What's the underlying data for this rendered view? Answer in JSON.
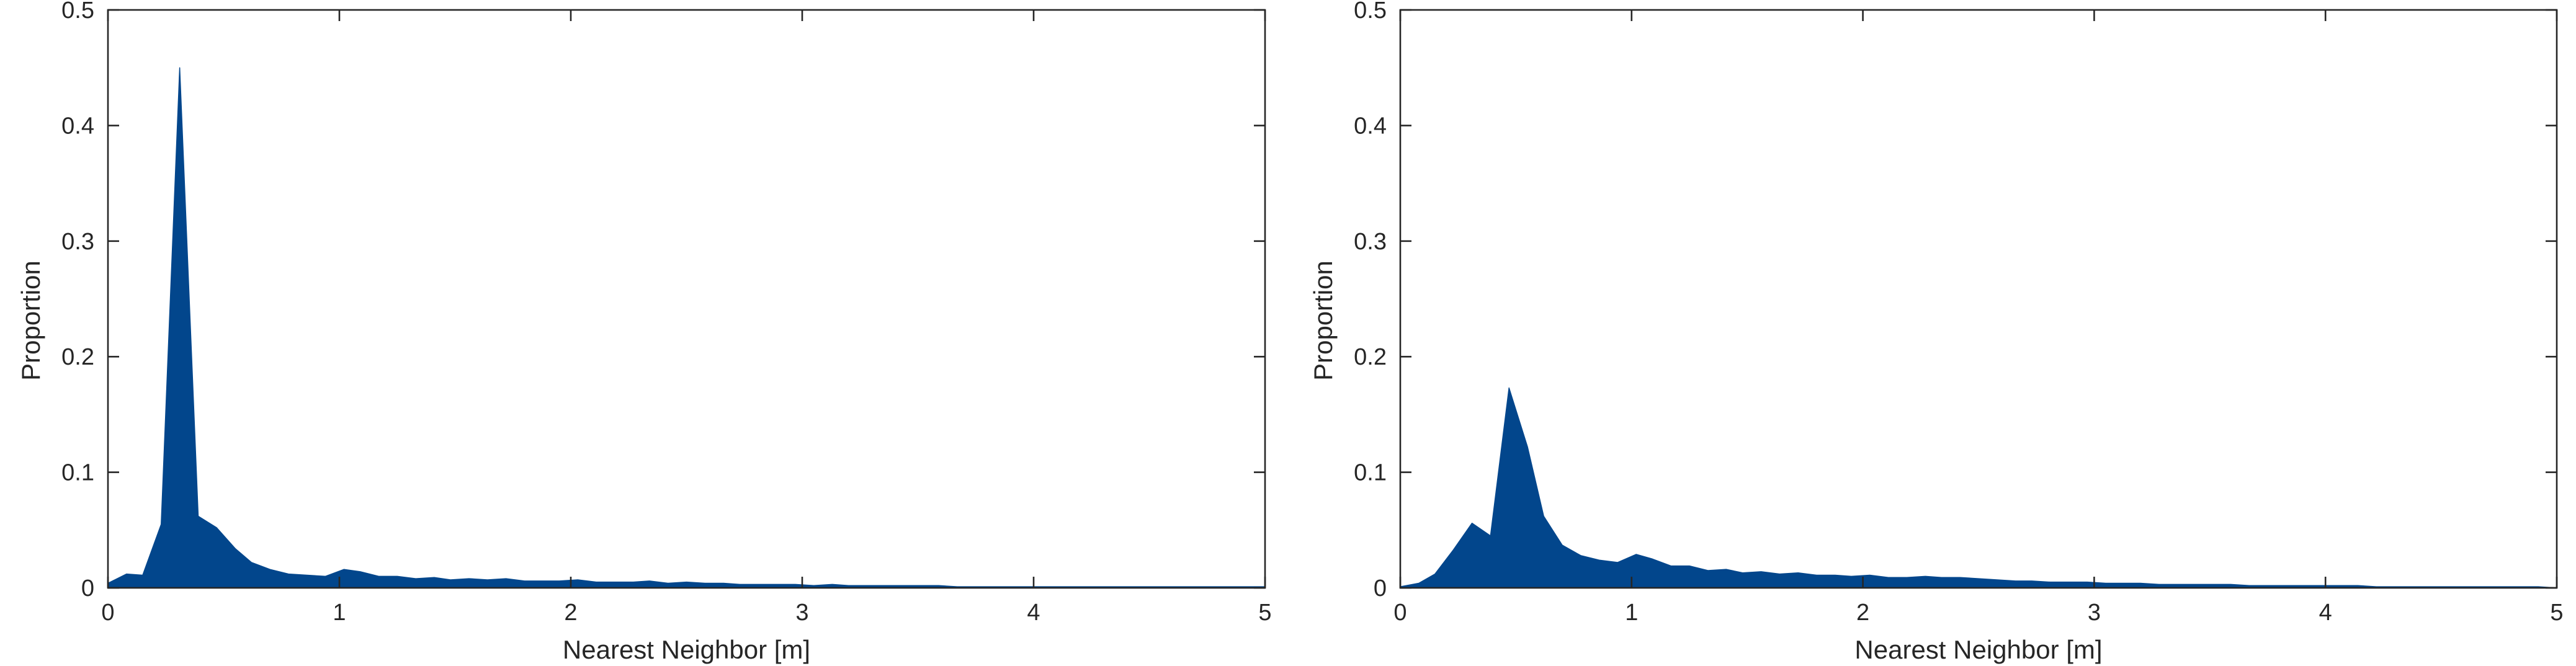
{
  "chart_data": [
    {
      "type": "area",
      "xlabel": "Nearest Neighbor [m]",
      "ylabel": "Proportion",
      "xlim": [
        0,
        5
      ],
      "ylim": [
        0,
        0.5
      ],
      "xticks": [
        "0",
        "1",
        "2",
        "3",
        "4",
        "5"
      ],
      "yticks": [
        "0",
        "0.1",
        "0.2",
        "0.3",
        "0.4",
        "0.5"
      ],
      "grid": false,
      "color": "#02468c",
      "series": [
        {
          "x": [
            0,
            0.08,
            0.15,
            0.23,
            0.31,
            0.39,
            0.47,
            0.55,
            0.62,
            0.7,
            0.78,
            0.86,
            0.94,
            1.02,
            1.09,
            1.17,
            1.25,
            1.33,
            1.41,
            1.48,
            1.56,
            1.64,
            1.72,
            1.8,
            1.88,
            1.95,
            2.03,
            2.11,
            2.19,
            2.27,
            2.34,
            2.42,
            2.5,
            2.58,
            2.66,
            2.73,
            2.81,
            2.89,
            2.97,
            3.05,
            3.13,
            3.2,
            3.28,
            3.36,
            3.44,
            3.52,
            3.59,
            3.67,
            3.75,
            3.83,
            3.91,
            3.98,
            4.06,
            4.14,
            4.22,
            4.3,
            4.38,
            4.45,
            4.53,
            4.61,
            4.69,
            4.77,
            4.84,
            4.92,
            5.0
          ],
          "y": [
            0.004,
            0.012,
            0.011,
            0.055,
            0.45,
            0.062,
            0.052,
            0.034,
            0.022,
            0.016,
            0.012,
            0.011,
            0.01,
            0.016,
            0.014,
            0.01,
            0.01,
            0.008,
            0.009,
            0.007,
            0.008,
            0.007,
            0.008,
            0.006,
            0.006,
            0.006,
            0.007,
            0.005,
            0.005,
            0.005,
            0.006,
            0.004,
            0.005,
            0.004,
            0.004,
            0.003,
            0.003,
            0.003,
            0.003,
            0.002,
            0.003,
            0.002,
            0.002,
            0.002,
            0.002,
            0.002,
            0.002,
            0.001,
            0.001,
            0.001,
            0.001,
            0.001,
            0.001,
            0.001,
            0.001,
            0.001,
            0.001,
            0.001,
            0.001,
            0.001,
            0.001,
            0.001,
            0.001,
            0.001,
            0.001
          ]
        }
      ]
    },
    {
      "type": "area",
      "xlabel": "Nearest Neighbor [m]",
      "ylabel": "Proportion",
      "xlim": [
        0,
        5
      ],
      "ylim": [
        0,
        0.5
      ],
      "xticks": [
        "0",
        "1",
        "2",
        "3",
        "4",
        "5"
      ],
      "yticks": [
        "0",
        "0.1",
        "0.2",
        "0.3",
        "0.4",
        "0.5"
      ],
      "grid": false,
      "color": "#02468c",
      "series": [
        {
          "x": [
            0,
            0.08,
            0.15,
            0.23,
            0.31,
            0.39,
            0.47,
            0.55,
            0.62,
            0.7,
            0.78,
            0.86,
            0.94,
            1.02,
            1.09,
            1.17,
            1.25,
            1.33,
            1.41,
            1.48,
            1.56,
            1.64,
            1.72,
            1.8,
            1.88,
            1.95,
            2.03,
            2.11,
            2.19,
            2.27,
            2.34,
            2.42,
            2.5,
            2.58,
            2.66,
            2.73,
            2.81,
            2.89,
            2.97,
            3.05,
            3.13,
            3.2,
            3.28,
            3.36,
            3.44,
            3.52,
            3.59,
            3.67,
            3.75,
            3.83,
            3.91,
            3.98,
            4.06,
            4.14,
            4.22,
            4.3,
            4.38,
            4.45,
            4.53,
            4.61,
            4.69,
            4.77,
            4.84,
            4.92,
            5.0
          ],
          "y": [
            0.001,
            0.004,
            0.012,
            0.033,
            0.056,
            0.045,
            0.173,
            0.122,
            0.062,
            0.037,
            0.028,
            0.024,
            0.022,
            0.029,
            0.025,
            0.019,
            0.019,
            0.015,
            0.016,
            0.013,
            0.014,
            0.012,
            0.013,
            0.011,
            0.011,
            0.01,
            0.011,
            0.009,
            0.009,
            0.01,
            0.009,
            0.009,
            0.008,
            0.007,
            0.006,
            0.006,
            0.005,
            0.005,
            0.005,
            0.004,
            0.004,
            0.004,
            0.003,
            0.003,
            0.003,
            0.003,
            0.003,
            0.002,
            0.002,
            0.002,
            0.002,
            0.002,
            0.002,
            0.002,
            0.001,
            0.001,
            0.001,
            0.001,
            0.001,
            0.001,
            0.001,
            0.001,
            0.001,
            0.001,
            0
          ]
        }
      ]
    }
  ]
}
